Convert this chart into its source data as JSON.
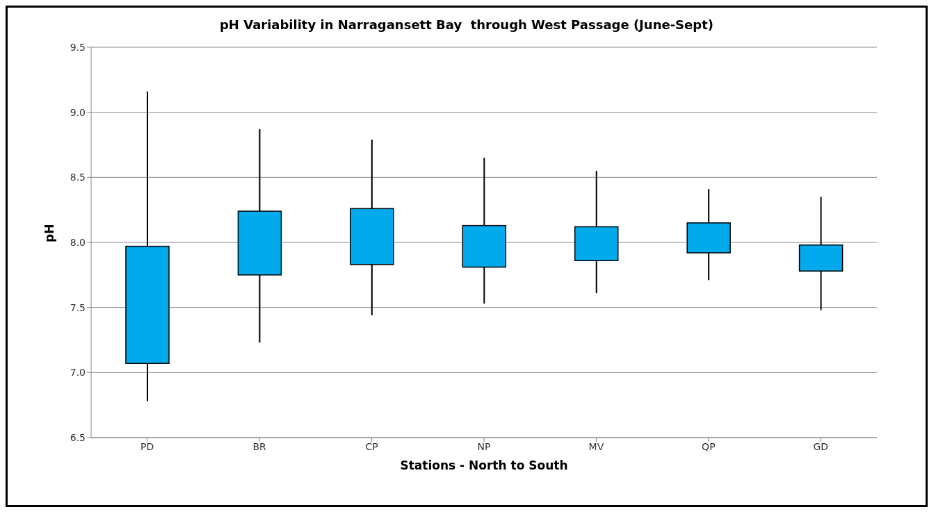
{
  "chart_data": {
    "type": "candlestick",
    "title": "pH Variability in Narragansett Bay  through West Passage (June-Sept)",
    "xlabel": "Stations - North to South",
    "ylabel": "pH",
    "categories": [
      "PD",
      "BR",
      "CP",
      "NP",
      "MV",
      "QP",
      "GD"
    ],
    "ohlc": [
      [
        7.07,
        9.16,
        6.78,
        7.97
      ],
      [
        7.75,
        8.87,
        7.23,
        8.24
      ],
      [
        7.83,
        8.79,
        7.44,
        8.26
      ],
      [
        7.81,
        8.65,
        7.53,
        8.13
      ],
      [
        7.86,
        8.55,
        7.61,
        8.12
      ],
      [
        7.92,
        8.41,
        7.71,
        8.15
      ],
      [
        7.78,
        8.35,
        7.48,
        7.98
      ]
    ],
    "color": "#00aaec",
    "ylim": [
      6.5,
      9.5
    ],
    "yticks": [
      {
        "value": 6.5,
        "label": "6.5"
      },
      {
        "value": 7,
        "label": "7.0"
      },
      {
        "value": 7.5,
        "label": "7.5"
      },
      {
        "value": 8,
        "label": "8.0"
      },
      {
        "value": 8.5,
        "label": "8.5"
      },
      {
        "value": 9,
        "label": "9.0"
      },
      {
        "value": 9.5,
        "label": "9.5"
      }
    ],
    "grid": "y"
  }
}
